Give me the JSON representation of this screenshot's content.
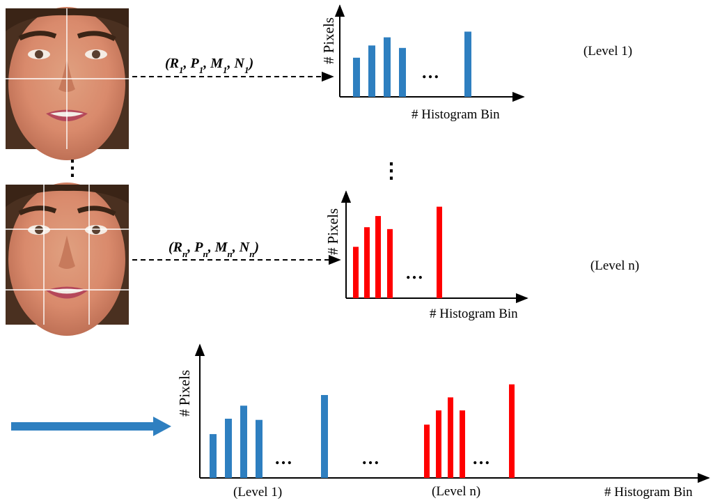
{
  "rows": [
    {
      "level_label": "(Level 1)",
      "tuple": {
        "parts": [
          [
            "R",
            "1"
          ],
          [
            "P",
            "1"
          ],
          [
            "M",
            "1"
          ],
          [
            "N",
            "1"
          ]
        ]
      },
      "grid": "2x2",
      "chart": {
        "y_label": "# Pixels",
        "x_label": "# Histogram  Bin",
        "ellipsis": "…",
        "color": "#2e7fc0",
        "values": [
          0.48,
          0.63,
          0.73,
          0.6
        ],
        "last_value": 0.8
      }
    },
    {
      "level_label": "(Level n)",
      "tuple": {
        "parts": [
          [
            "R",
            "n"
          ],
          [
            "P",
            "n"
          ],
          [
            "M",
            "n"
          ],
          [
            "N",
            "n"
          ]
        ]
      },
      "grid": "3x3",
      "chart": {
        "y_label": "# Pixels",
        "x_label": "# Histogram  Bin",
        "ellipsis": "…",
        "color": "#ff0000",
        "values": [
          0.55,
          0.76,
          0.88,
          0.74
        ],
        "last_value": 0.98
      }
    }
  ],
  "vertical_dots": "⋮",
  "combined": {
    "y_label": "# Pixels",
    "x_label": "# Histogram  Bin",
    "group1_label": "(Level 1)",
    "groupn_label": "(Level n)",
    "ellipsis": "…",
    "blue": "#2e7fc0",
    "red": "#ff0000",
    "blue_values": [
      0.37,
      0.5,
      0.61,
      0.49
    ],
    "blue_last": 0.7,
    "red_values": [
      0.45,
      0.57,
      0.68,
      0.57
    ],
    "red_last": 0.79
  },
  "arrow_color": "#2e7fc0"
}
